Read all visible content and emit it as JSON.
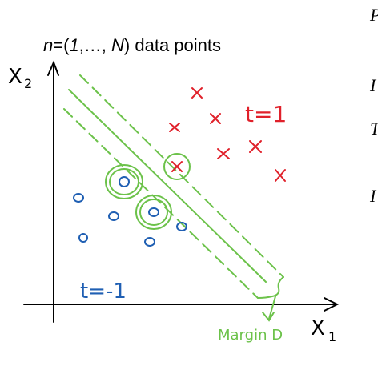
{
  "title": {
    "n": "n",
    "eq_open": "=(",
    "one": "1",
    "sep": ",…, ",
    "N": "N",
    "close": ")",
    "rest": " data points"
  },
  "axes": {
    "y_label": "X",
    "y_sub": "2",
    "x_label": "X",
    "x_sub": "1"
  },
  "classes": {
    "positive": {
      "label": "t=1",
      "color": "#e0202a",
      "marker": "cross"
    },
    "negative": {
      "label": "t=-1",
      "color": "#1f5fb3",
      "marker": "circle"
    }
  },
  "margin_label": "Margin D",
  "margin_color": "#6cc24a",
  "edge_glyphs": [
    "P",
    "I",
    "T",
    "I"
  ]
}
